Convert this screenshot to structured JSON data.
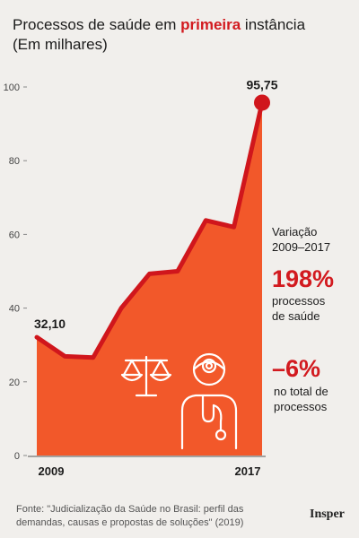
{
  "title": {
    "prefix": "Processos de saúde em ",
    "highlight": "primeira",
    "suffix": " instância",
    "unit": "(Em milhares)"
  },
  "chart_data": {
    "type": "area",
    "x": [
      "2009",
      "2010",
      "2011",
      "2012",
      "2013",
      "2014",
      "2015",
      "2016",
      "2017"
    ],
    "values": [
      32.1,
      26.9,
      26.6,
      40.0,
      49.3,
      50.0,
      63.8,
      62.0,
      95.75
    ],
    "ylim": [
      0,
      100
    ],
    "yticks": [
      0,
      20,
      40,
      60,
      80,
      100
    ],
    "xtick_labels": [
      {
        "index": 0,
        "label": "2009"
      },
      {
        "index": 8,
        "label": "2017"
      }
    ],
    "data_labels": [
      {
        "index": 0,
        "label": "32,10"
      },
      {
        "index": 8,
        "label": "95,75"
      }
    ],
    "grid": false,
    "colors": {
      "fill": "#f2582a",
      "line": "#d0161c",
      "marker": "#d0161c"
    }
  },
  "sidebar": {
    "label_line1": "Variação",
    "label_line2": "2009–2017",
    "stat1_value": "198%",
    "stat1_line1": "processos",
    "stat1_line2": "de saúde",
    "stat2_value": "–6%",
    "stat2_line1": "no total de",
    "stat2_line2": "processos"
  },
  "icons": [
    "scales-of-justice-icon",
    "doctor-icon"
  ],
  "source_line1": "Fonte: \"Judicialização da Saúde no Brasil: perfil das",
  "source_line2": "demandas, causas e propostas de soluções\" (2019)",
  "brand": "Insper"
}
